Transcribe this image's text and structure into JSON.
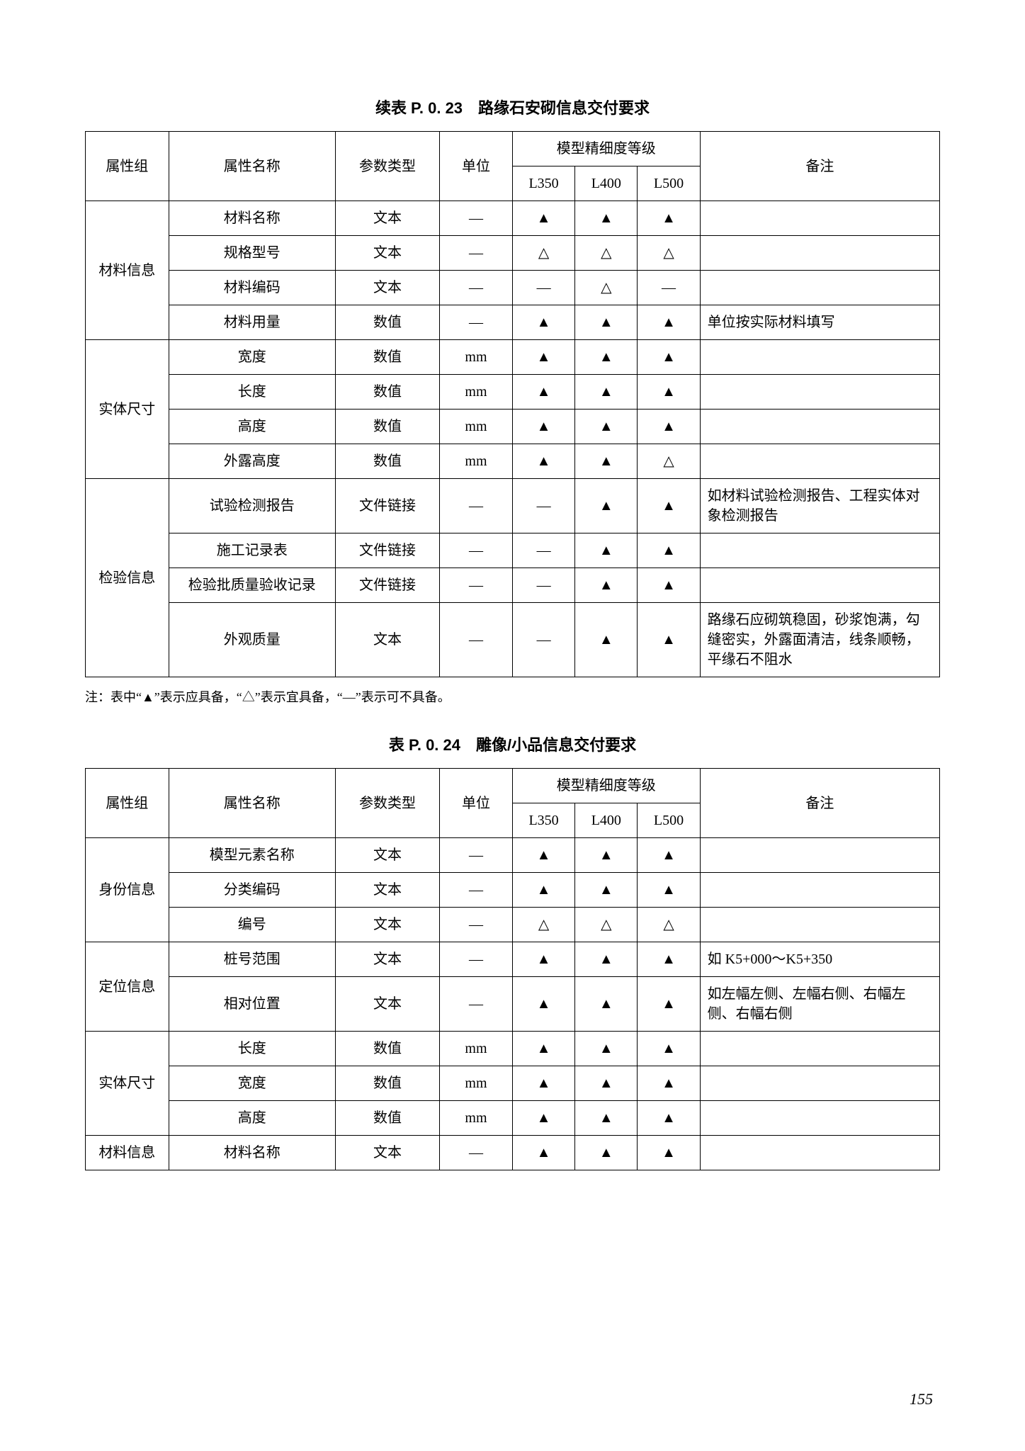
{
  "page_number": "155",
  "symbols": {
    "filled": "▲",
    "hollow": "△",
    "dash": "—"
  },
  "table1": {
    "title": "续表 P. 0. 23　路缘石安砌信息交付要求",
    "headers": {
      "group": "属性组",
      "name": "属性名称",
      "type": "参数类型",
      "unit": "单位",
      "level_header": "模型精细度等级",
      "L350": "L350",
      "L400": "L400",
      "L500": "L500",
      "remark": "备注"
    },
    "groups": [
      {
        "group": "材料信息",
        "rows": [
          {
            "name": "材料名称",
            "type": "文本",
            "unit": "—",
            "l350": "▲",
            "l400": "▲",
            "l500": "▲",
            "remark": ""
          },
          {
            "name": "规格型号",
            "type": "文本",
            "unit": "—",
            "l350": "△",
            "l400": "△",
            "l500": "△",
            "remark": ""
          },
          {
            "name": "材料编码",
            "type": "文本",
            "unit": "—",
            "l350": "—",
            "l400": "△",
            "l500": "—",
            "remark": ""
          },
          {
            "name": "材料用量",
            "type": "数值",
            "unit": "—",
            "l350": "▲",
            "l400": "▲",
            "l500": "▲",
            "remark": "单位按实际材料填写"
          }
        ]
      },
      {
        "group": "实体尺寸",
        "rows": [
          {
            "name": "宽度",
            "type": "数值",
            "unit": "mm",
            "l350": "▲",
            "l400": "▲",
            "l500": "▲",
            "remark": ""
          },
          {
            "name": "长度",
            "type": "数值",
            "unit": "mm",
            "l350": "▲",
            "l400": "▲",
            "l500": "▲",
            "remark": ""
          },
          {
            "name": "高度",
            "type": "数值",
            "unit": "mm",
            "l350": "▲",
            "l400": "▲",
            "l500": "▲",
            "remark": ""
          },
          {
            "name": "外露高度",
            "type": "数值",
            "unit": "mm",
            "l350": "▲",
            "l400": "▲",
            "l500": "△",
            "remark": ""
          }
        ]
      },
      {
        "group": "检验信息",
        "rows": [
          {
            "name": "试验检测报告",
            "type": "文件链接",
            "unit": "—",
            "l350": "—",
            "l400": "▲",
            "l500": "▲",
            "remark": "如材料试验检测报告、工程实体对象检测报告"
          },
          {
            "name": "施工记录表",
            "type": "文件链接",
            "unit": "—",
            "l350": "—",
            "l400": "▲",
            "l500": "▲",
            "remark": ""
          },
          {
            "name": "检验批质量验收记录",
            "type": "文件链接",
            "unit": "—",
            "l350": "—",
            "l400": "▲",
            "l500": "▲",
            "remark": ""
          },
          {
            "name": "外观质量",
            "type": "文本",
            "unit": "—",
            "l350": "—",
            "l400": "▲",
            "l500": "▲",
            "remark": "路缘石应砌筑稳固，砂浆饱满，勾缝密实，外露面清洁，线条顺畅，平缘石不阻水"
          }
        ]
      }
    ]
  },
  "note": "注：表中“▲”表示应具备，“△”表示宜具备，“—”表示可不具备。",
  "table2": {
    "title": "表 P. 0. 24　雕像/小品信息交付要求",
    "headers": {
      "group": "属性组",
      "name": "属性名称",
      "type": "参数类型",
      "unit": "单位",
      "level_header": "模型精细度等级",
      "L350": "L350",
      "L400": "L400",
      "L500": "L500",
      "remark": "备注"
    },
    "groups": [
      {
        "group": "身份信息",
        "rows": [
          {
            "name": "模型元素名称",
            "type": "文本",
            "unit": "—",
            "l350": "▲",
            "l400": "▲",
            "l500": "▲",
            "remark": ""
          },
          {
            "name": "分类编码",
            "type": "文本",
            "unit": "—",
            "l350": "▲",
            "l400": "▲",
            "l500": "▲",
            "remark": ""
          },
          {
            "name": "编号",
            "type": "文本",
            "unit": "—",
            "l350": "△",
            "l400": "△",
            "l500": "△",
            "remark": ""
          }
        ]
      },
      {
        "group": "定位信息",
        "rows": [
          {
            "name": "桩号范围",
            "type": "文本",
            "unit": "—",
            "l350": "▲",
            "l400": "▲",
            "l500": "▲",
            "remark": "如 K5+000～K5+350"
          },
          {
            "name": "相对位置",
            "type": "文本",
            "unit": "—",
            "l350": "▲",
            "l400": "▲",
            "l500": "▲",
            "remark": "如左幅左侧、左幅右侧、右幅左侧、右幅右侧"
          }
        ]
      },
      {
        "group": "实体尺寸",
        "rows": [
          {
            "name": "长度",
            "type": "数值",
            "unit": "mm",
            "l350": "▲",
            "l400": "▲",
            "l500": "▲",
            "remark": ""
          },
          {
            "name": "宽度",
            "type": "数值",
            "unit": "mm",
            "l350": "▲",
            "l400": "▲",
            "l500": "▲",
            "remark": ""
          },
          {
            "name": "高度",
            "type": "数值",
            "unit": "mm",
            "l350": "▲",
            "l400": "▲",
            "l500": "▲",
            "remark": ""
          }
        ]
      },
      {
        "group": "材料信息",
        "rows": [
          {
            "name": "材料名称",
            "type": "文本",
            "unit": "—",
            "l350": "▲",
            "l400": "▲",
            "l500": "▲",
            "remark": ""
          }
        ]
      }
    ]
  }
}
